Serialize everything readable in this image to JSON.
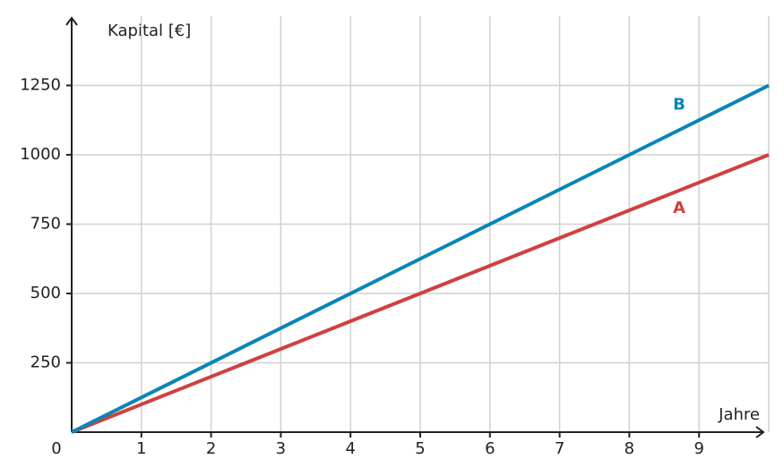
{
  "chart_data": {
    "type": "line",
    "x_label": "Jahre",
    "y_label": "Kapital [€]",
    "x": [
      0,
      10
    ],
    "series": [
      {
        "name": "A",
        "color": "#d04040",
        "values": [
          0,
          1000
        ]
      },
      {
        "name": "B",
        "color": "#0a85b5",
        "values": [
          0,
          1250
        ]
      }
    ],
    "xlim": [
      0,
      10
    ],
    "ylim": [
      0,
      1500
    ],
    "xticks": [
      0,
      1,
      2,
      3,
      4,
      5,
      6,
      7,
      8,
      9
    ],
    "yticks": [
      250,
      500,
      750,
      1000,
      1250
    ],
    "grid": true
  }
}
